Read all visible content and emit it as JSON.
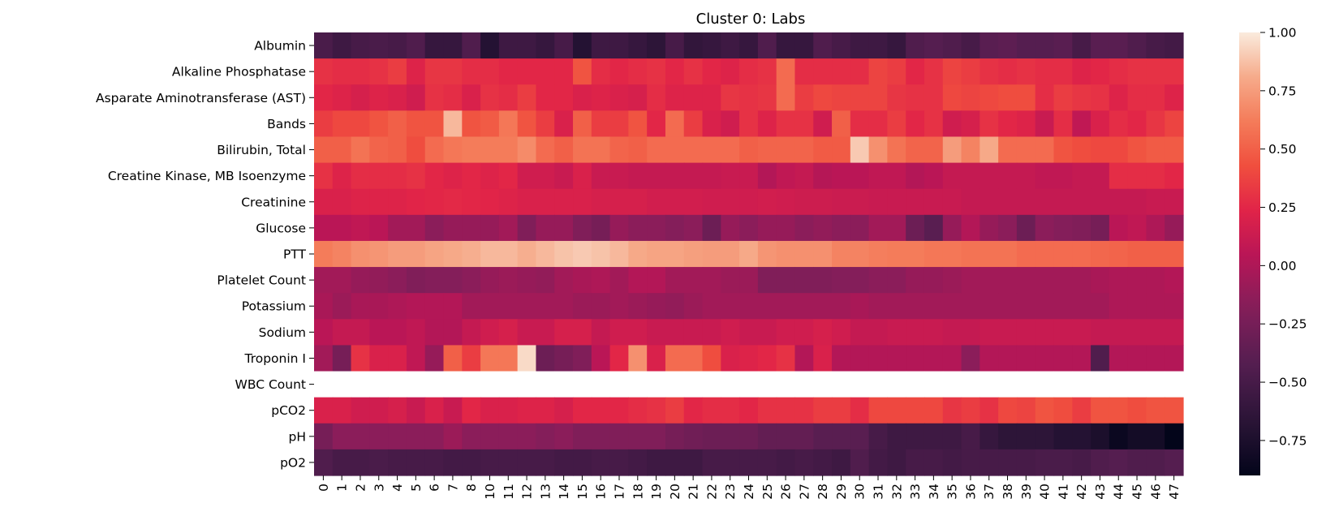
{
  "chart_data": {
    "type": "heatmap",
    "title": "Cluster 0: Labs",
    "xlabel": "",
    "ylabel": "",
    "x": [
      "0",
      "1",
      "2",
      "3",
      "4",
      "5",
      "6",
      "7",
      "8",
      "10",
      "11",
      "12",
      "13",
      "14",
      "15",
      "16",
      "17",
      "18",
      "19",
      "20",
      "21",
      "22",
      "23",
      "24",
      "25",
      "26",
      "27",
      "28",
      "29",
      "30",
      "31",
      "32",
      "33",
      "34",
      "35",
      "36",
      "37",
      "38",
      "39",
      "40",
      "41",
      "42",
      "43",
      "44",
      "45",
      "46",
      "47"
    ],
    "y": [
      "Albumin",
      "Alkaline Phosphatase",
      "Asparate Aminotransferase (AST)",
      "Bands",
      "Bilirubin, Total",
      "Creatine Kinase, MB Isoenzyme",
      "Creatinine",
      "Glucose",
      "PTT",
      "Platelet Count",
      "Potassium",
      "Sodium",
      "Troponin I",
      "WBC Count",
      "pCO2",
      "pH",
      "pO2"
    ],
    "colorbar": {
      "min": -0.9,
      "max": 1.0,
      "ticks": [
        1.0,
        0.75,
        0.5,
        0.25,
        0.0,
        -0.25,
        -0.5,
        -0.75
      ],
      "tick_labels": [
        "1.00",
        "0.75",
        "0.50",
        "0.25",
        "0.00",
        "−0.25",
        "−0.50",
        "−0.75"
      ],
      "colormap": "rocket"
    },
    "missing_color": "#ffffff",
    "values": [
      [
        -0.48,
        -0.55,
        -0.5,
        -0.48,
        -0.5,
        -0.45,
        -0.6,
        -0.6,
        -0.45,
        -0.7,
        -0.55,
        -0.55,
        -0.6,
        -0.5,
        -0.7,
        -0.55,
        -0.55,
        -0.6,
        -0.65,
        -0.5,
        -0.62,
        -0.6,
        -0.55,
        -0.6,
        -0.45,
        -0.6,
        -0.6,
        -0.45,
        -0.5,
        -0.55,
        -0.55,
        -0.6,
        -0.45,
        -0.42,
        -0.45,
        -0.5,
        -0.4,
        -0.38,
        -0.42,
        -0.42,
        -0.4,
        -0.5,
        -0.4,
        -0.4,
        -0.45,
        -0.5,
        -0.52
      ],
      [
        0.3,
        0.28,
        0.28,
        0.3,
        0.35,
        0.22,
        0.32,
        0.32,
        0.28,
        0.28,
        0.25,
        0.25,
        0.25,
        0.25,
        0.45,
        0.28,
        0.25,
        0.28,
        0.3,
        0.25,
        0.3,
        0.25,
        0.22,
        0.28,
        0.3,
        0.55,
        0.28,
        0.28,
        0.28,
        0.28,
        0.38,
        0.35,
        0.25,
        0.3,
        0.38,
        0.35,
        0.3,
        0.28,
        0.3,
        0.28,
        0.28,
        0.22,
        0.25,
        0.28,
        0.3,
        0.3,
        0.3
      ],
      [
        0.25,
        0.22,
        0.18,
        0.22,
        0.2,
        0.15,
        0.3,
        0.28,
        0.2,
        0.3,
        0.28,
        0.35,
        0.25,
        0.25,
        0.2,
        0.22,
        0.2,
        0.18,
        0.28,
        0.22,
        0.22,
        0.22,
        0.32,
        0.3,
        0.32,
        0.55,
        0.35,
        0.4,
        0.38,
        0.38,
        0.38,
        0.32,
        0.3,
        0.3,
        0.4,
        0.38,
        0.4,
        0.42,
        0.42,
        0.28,
        0.35,
        0.32,
        0.3,
        0.22,
        0.28,
        0.28,
        0.22
      ],
      [
        0.35,
        0.4,
        0.4,
        0.45,
        0.5,
        0.45,
        0.45,
        0.85,
        0.45,
        0.48,
        0.6,
        0.45,
        0.35,
        0.2,
        0.5,
        0.35,
        0.35,
        0.45,
        0.25,
        0.55,
        0.35,
        0.2,
        0.15,
        0.3,
        0.22,
        0.3,
        0.3,
        0.15,
        0.5,
        0.28,
        0.28,
        0.35,
        0.25,
        0.3,
        0.15,
        0.18,
        0.3,
        0.25,
        0.22,
        0.12,
        0.28,
        0.08,
        0.2,
        0.28,
        0.25,
        0.32,
        0.38
      ],
      [
        0.5,
        0.5,
        0.58,
        0.52,
        0.5,
        0.42,
        0.55,
        0.6,
        0.62,
        0.62,
        0.62,
        0.68,
        0.55,
        0.5,
        0.58,
        0.58,
        0.52,
        0.5,
        0.55,
        0.55,
        0.55,
        0.55,
        0.55,
        0.5,
        0.52,
        0.52,
        0.52,
        0.48,
        0.48,
        0.9,
        0.7,
        0.58,
        0.52,
        0.52,
        0.75,
        0.65,
        0.8,
        0.55,
        0.55,
        0.55,
        0.45,
        0.42,
        0.4,
        0.4,
        0.45,
        0.48,
        0.48
      ],
      [
        0.3,
        0.22,
        0.28,
        0.28,
        0.28,
        0.3,
        0.25,
        0.22,
        0.25,
        0.22,
        0.25,
        0.15,
        0.15,
        0.12,
        0.2,
        0.12,
        0.12,
        0.1,
        0.1,
        0.1,
        0.1,
        0.1,
        0.12,
        0.12,
        0.02,
        0.08,
        0.1,
        0.03,
        0.05,
        0.05,
        0.08,
        0.08,
        0.02,
        0.05,
        0.1,
        0.1,
        0.1,
        0.1,
        0.1,
        0.08,
        0.08,
        0.1,
        0.1,
        0.28,
        0.28,
        0.28,
        0.25
      ],
      [
        0.2,
        0.2,
        0.22,
        0.22,
        0.22,
        0.24,
        0.25,
        0.26,
        0.25,
        0.24,
        0.22,
        0.2,
        0.2,
        0.2,
        0.2,
        0.18,
        0.18,
        0.18,
        0.16,
        0.16,
        0.16,
        0.15,
        0.15,
        0.15,
        0.16,
        0.15,
        0.14,
        0.14,
        0.13,
        0.13,
        0.12,
        0.12,
        0.12,
        0.12,
        0.12,
        0.1,
        0.1,
        0.1,
        0.1,
        0.1,
        0.1,
        0.1,
        0.1,
        0.1,
        0.1,
        0.12,
        0.12
      ],
      [
        0.05,
        0.05,
        0.08,
        0.05,
        -0.05,
        -0.05,
        -0.15,
        -0.1,
        -0.1,
        -0.1,
        -0.05,
        -0.2,
        -0.1,
        -0.1,
        -0.2,
        -0.25,
        -0.1,
        -0.15,
        -0.15,
        -0.18,
        -0.15,
        -0.3,
        -0.1,
        -0.15,
        -0.1,
        -0.1,
        -0.15,
        -0.12,
        -0.15,
        -0.15,
        -0.05,
        -0.05,
        -0.3,
        -0.4,
        -0.1,
        0.02,
        -0.1,
        -0.15,
        -0.3,
        -0.15,
        -0.18,
        -0.2,
        -0.25,
        0.05,
        0.08,
        0.0,
        -0.1
      ],
      [
        0.62,
        0.65,
        0.7,
        0.72,
        0.75,
        0.75,
        0.78,
        0.8,
        0.82,
        0.85,
        0.85,
        0.82,
        0.85,
        0.88,
        0.9,
        0.88,
        0.85,
        0.8,
        0.78,
        0.78,
        0.76,
        0.75,
        0.75,
        0.8,
        0.72,
        0.7,
        0.7,
        0.7,
        0.65,
        0.65,
        0.63,
        0.62,
        0.62,
        0.6,
        0.6,
        0.58,
        0.58,
        0.58,
        0.55,
        0.55,
        0.55,
        0.55,
        0.53,
        0.52,
        0.5,
        0.5,
        0.5
      ],
      [
        -0.05,
        -0.05,
        -0.1,
        -0.12,
        -0.15,
        -0.2,
        -0.18,
        -0.18,
        -0.15,
        -0.1,
        -0.08,
        -0.1,
        -0.12,
        -0.05,
        -0.02,
        0.0,
        -0.05,
        0.02,
        0.02,
        -0.05,
        -0.05,
        -0.05,
        -0.08,
        -0.08,
        -0.2,
        -0.2,
        -0.2,
        -0.2,
        -0.18,
        -0.18,
        -0.15,
        -0.15,
        -0.1,
        -0.1,
        -0.08,
        -0.05,
        -0.05,
        -0.05,
        -0.05,
        -0.05,
        -0.05,
        -0.05,
        -0.02,
        0.0,
        0.0,
        0.0,
        0.02
      ],
      [
        -0.02,
        -0.08,
        -0.02,
        -0.02,
        0.0,
        0.02,
        0.02,
        0.02,
        -0.05,
        -0.05,
        -0.05,
        -0.05,
        -0.05,
        -0.05,
        -0.08,
        -0.08,
        -0.05,
        -0.08,
        -0.1,
        -0.12,
        -0.08,
        -0.05,
        -0.05,
        -0.05,
        -0.05,
        -0.05,
        -0.05,
        -0.05,
        -0.05,
        -0.02,
        -0.05,
        -0.05,
        -0.05,
        -0.05,
        -0.05,
        -0.05,
        -0.05,
        -0.05,
        -0.05,
        -0.05,
        -0.05,
        -0.05,
        -0.05,
        0.0,
        0.0,
        0.0,
        0.0
      ],
      [
        0.05,
        0.1,
        0.1,
        0.05,
        0.05,
        0.08,
        0.02,
        0.02,
        0.1,
        0.15,
        0.18,
        0.12,
        0.12,
        0.18,
        0.18,
        0.1,
        0.15,
        0.15,
        0.12,
        0.12,
        0.12,
        0.12,
        0.15,
        0.12,
        0.12,
        0.15,
        0.15,
        0.18,
        0.15,
        0.1,
        0.1,
        0.12,
        0.12,
        0.12,
        0.1,
        0.1,
        0.12,
        0.12,
        0.12,
        0.12,
        0.12,
        0.12,
        0.1,
        0.1,
        0.1,
        0.1,
        0.1
      ],
      [
        -0.05,
        -0.25,
        0.3,
        0.2,
        0.2,
        0.08,
        -0.1,
        0.5,
        0.35,
        0.6,
        0.6,
        0.95,
        -0.3,
        -0.25,
        -0.2,
        0.05,
        0.25,
        0.7,
        0.2,
        0.55,
        0.55,
        0.42,
        0.2,
        0.22,
        0.25,
        0.3,
        0.02,
        0.2,
        0.02,
        0.02,
        0.02,
        0.02,
        0.02,
        0.02,
        0.02,
        -0.15,
        0.02,
        0.02,
        0.02,
        0.02,
        0.02,
        0.02,
        -0.45,
        0.02,
        0.02,
        0.02,
        0.02
      ],
      [
        null,
        null,
        null,
        null,
        null,
        null,
        null,
        null,
        null,
        null,
        null,
        null,
        null,
        null,
        null,
        null,
        null,
        null,
        null,
        null,
        null,
        null,
        null,
        null,
        null,
        null,
        null,
        null,
        null,
        null,
        null,
        null,
        null,
        null,
        null,
        null,
        null,
        null,
        null,
        null,
        null,
        null,
        null,
        null,
        null,
        null,
        null
      ],
      [
        0.2,
        0.2,
        0.15,
        0.15,
        0.18,
        0.12,
        0.2,
        0.12,
        0.25,
        0.2,
        0.2,
        0.22,
        0.22,
        0.18,
        0.25,
        0.25,
        0.25,
        0.28,
        0.3,
        0.35,
        0.25,
        0.28,
        0.28,
        0.25,
        0.3,
        0.3,
        0.3,
        0.35,
        0.35,
        0.28,
        0.4,
        0.4,
        0.4,
        0.4,
        0.32,
        0.35,
        0.3,
        0.4,
        0.38,
        0.45,
        0.42,
        0.35,
        0.45,
        0.45,
        0.42,
        0.45,
        0.45
      ],
      [
        -0.25,
        -0.15,
        -0.15,
        -0.15,
        -0.15,
        -0.15,
        -0.15,
        -0.08,
        -0.15,
        -0.15,
        -0.15,
        -0.15,
        -0.18,
        -0.15,
        -0.2,
        -0.2,
        -0.2,
        -0.2,
        -0.2,
        -0.25,
        -0.28,
        -0.3,
        -0.3,
        -0.3,
        -0.35,
        -0.35,
        -0.35,
        -0.4,
        -0.4,
        -0.4,
        -0.5,
        -0.55,
        -0.55,
        -0.55,
        -0.55,
        -0.5,
        -0.6,
        -0.65,
        -0.65,
        -0.65,
        -0.7,
        -0.7,
        -0.75,
        -0.85,
        -0.8,
        -0.8,
        -0.9
      ],
      [
        -0.45,
        -0.5,
        -0.5,
        -0.48,
        -0.5,
        -0.5,
        -0.5,
        -0.52,
        -0.52,
        -0.5,
        -0.5,
        -0.5,
        -0.5,
        -0.52,
        -0.52,
        -0.5,
        -0.5,
        -0.52,
        -0.55,
        -0.55,
        -0.55,
        -0.5,
        -0.5,
        -0.5,
        -0.5,
        -0.52,
        -0.5,
        -0.52,
        -0.55,
        -0.45,
        -0.52,
        -0.55,
        -0.5,
        -0.5,
        -0.52,
        -0.5,
        -0.5,
        -0.5,
        -0.5,
        -0.48,
        -0.48,
        -0.5,
        -0.45,
        -0.42,
        -0.45,
        -0.45,
        -0.42
      ]
    ]
  }
}
